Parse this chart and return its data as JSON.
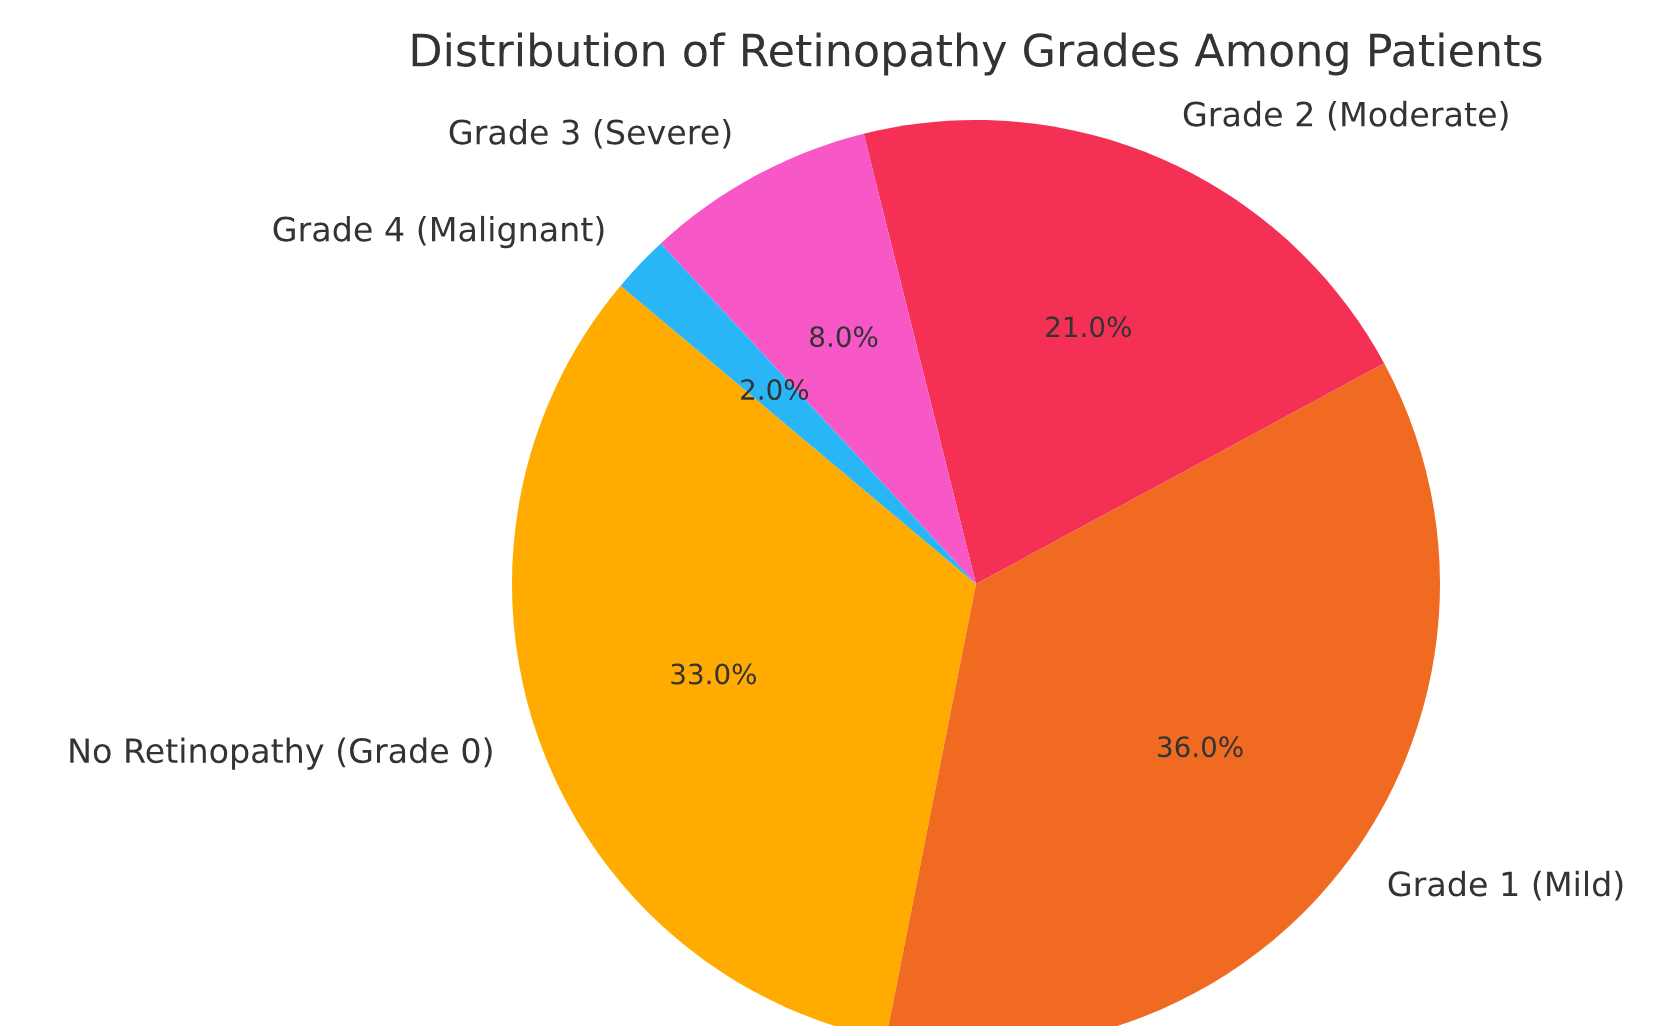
{
  "chart_data": {
    "type": "pie",
    "title": "Distribution of Retinopathy Grades Among Patients",
    "categories": [
      "No Retinopathy (Grade 0)",
      "Grade 1 (Mild)",
      "Grade 2 (Moderate)",
      "Grade 3 (Severe)",
      "Grade 4 (Malignant)"
    ],
    "values": [
      33,
      36,
      21,
      8,
      2
    ],
    "value_labels": [
      "33.0%",
      "36.0%",
      "21.0%",
      "8.0%",
      "2.0%"
    ],
    "colors": [
      "#ffab00",
      "#f06a22",
      "#f43054",
      "#f857c8",
      "#29b6f6"
    ],
    "legend": false
  }
}
